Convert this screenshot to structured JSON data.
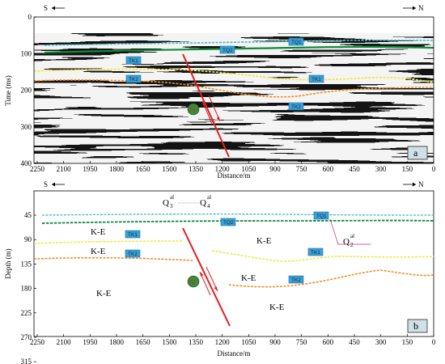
{
  "panel_a": {
    "dir_left": "S",
    "dir_right": "N",
    "ylabel": "Time (ms)",
    "xlabel": "Distance/m",
    "yticks": [
      "0",
      "100",
      "200",
      "300",
      "400"
    ],
    "xticks": [
      "2250",
      "2100",
      "1950",
      "1800",
      "1650",
      "1500",
      "1350",
      "1200",
      "1050",
      "900",
      "750",
      "600",
      "450",
      "300",
      "150",
      "0"
    ],
    "tags": {
      "tq1": "TQ1",
      "tq2": "TQ2",
      "tk1": "TK1",
      "tk2": "TK2",
      "tk1_right": "TK1",
      "tk2_right": "TK2"
    },
    "fault_label": "F0",
    "panel_label": "a"
  },
  "panel_b": {
    "dir_left": "S",
    "dir_right": "N",
    "ylabel": "Depth (m)",
    "xlabel": "Distance/m",
    "yticks": [
      "45",
      "90",
      "135",
      "180",
      "225",
      "270",
      "315"
    ],
    "xticks": [
      "2250",
      "2100",
      "1950",
      "1800",
      "1650",
      "1500",
      "1350",
      "1200",
      "1050",
      "900",
      "750",
      "600",
      "450",
      "300",
      "150",
      "0"
    ],
    "units": {
      "q3": "Q",
      "q3_sup": "al",
      "q3_sub": "3",
      "q4": "Q",
      "q4_sup": "al",
      "q4_sub": "4",
      "q2": "Q",
      "q2_sup": "al",
      "q2_sub": "2",
      "ke": "K-E"
    },
    "tags": {
      "tq1": "TQ1",
      "tq2": "TQ2",
      "tk1": "TK1",
      "tk2": "TK2",
      "tk1_right": "TK1",
      "tk2_right": "TK2"
    },
    "fault_label": "F0",
    "panel_label": "b"
  },
  "colors": {
    "tq1_line": "#3fbcc4",
    "tq2_line": "#0f8a3a",
    "tk1_line": "#f2e63a",
    "tk2_line": "#f08a1e",
    "fault": "#e02020",
    "tag_fill": "#3aa0d8",
    "fault_badge": "#3a8a3a"
  }
}
